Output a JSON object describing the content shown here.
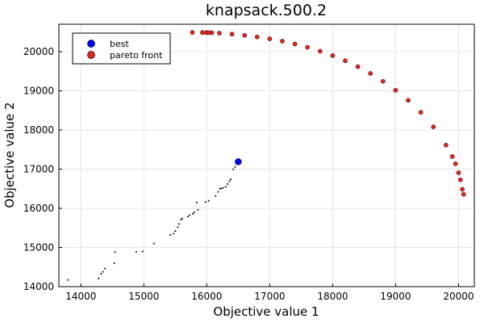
{
  "chart_data": {
    "type": "scatter",
    "title": "knapsack.500.2",
    "xlabel": "Objective value 1",
    "ylabel": "Objective value 2",
    "xlim": [
      13650,
      20250
    ],
    "ylim": [
      14000,
      20700
    ],
    "xticks": [
      14000,
      15000,
      16000,
      17000,
      18000,
      19000,
      20000
    ],
    "yticks": [
      14000,
      15000,
      16000,
      17000,
      18000,
      19000,
      20000
    ],
    "grid": true,
    "legend_position": "top-left",
    "series": [
      {
        "name": "best",
        "color": "#0000ff",
        "marker": "circle",
        "points": [
          [
            16500,
            17190
          ]
        ]
      },
      {
        "name": "pareto front",
        "color": "#e6261f",
        "marker": "circle",
        "points": [
          [
            15770,
            20490
          ],
          [
            15930,
            20488
          ],
          [
            15990,
            20486
          ],
          [
            16030,
            20485
          ],
          [
            16080,
            20482
          ],
          [
            16200,
            20472
          ],
          [
            16400,
            20448
          ],
          [
            16600,
            20414
          ],
          [
            16800,
            20375
          ],
          [
            17000,
            20327
          ],
          [
            17200,
            20268
          ],
          [
            17400,
            20196
          ],
          [
            17600,
            20111
          ],
          [
            17800,
            20011
          ],
          [
            18000,
            19899
          ],
          [
            18200,
            19767
          ],
          [
            18400,
            19616
          ],
          [
            18600,
            19443
          ],
          [
            18800,
            19243
          ],
          [
            19000,
            19016
          ],
          [
            19200,
            18756
          ],
          [
            19400,
            18451
          ],
          [
            19600,
            18081
          ],
          [
            19800,
            17614
          ],
          [
            19900,
            17322
          ],
          [
            19950,
            17137
          ],
          [
            20000,
            16908
          ],
          [
            20030,
            16727
          ],
          [
            20060,
            16486
          ],
          [
            20080,
            16358
          ]
        ]
      },
      {
        "name": "",
        "color": "#000000",
        "marker": "dot",
        "points": [
          [
            13800,
            14170
          ],
          [
            14280,
            14210
          ],
          [
            14320,
            14330
          ],
          [
            14350,
            14380
          ],
          [
            14380,
            14460
          ],
          [
            14530,
            14600
          ],
          [
            14540,
            14880
          ],
          [
            14880,
            14890
          ],
          [
            14980,
            14900
          ],
          [
            15160,
            15100
          ],
          [
            15420,
            15320
          ],
          [
            15470,
            15350
          ],
          [
            15500,
            15420
          ],
          [
            15540,
            15520
          ],
          [
            15560,
            15600
          ],
          [
            15590,
            15710
          ],
          [
            15610,
            15740
          ],
          [
            15700,
            15790
          ],
          [
            15730,
            15830
          ],
          [
            15780,
            15860
          ],
          [
            15800,
            15900
          ],
          [
            15840,
            16150
          ],
          [
            15860,
            15960
          ],
          [
            15980,
            16160
          ],
          [
            16030,
            16190
          ],
          [
            16140,
            16320
          ],
          [
            16180,
            16420
          ],
          [
            16210,
            16500
          ],
          [
            16230,
            16510
          ],
          [
            16260,
            16520
          ],
          [
            16300,
            16550
          ],
          [
            16330,
            16620
          ],
          [
            16360,
            16690
          ],
          [
            16380,
            16740
          ],
          [
            16420,
            17000
          ],
          [
            16450,
            17060
          ],
          [
            16480,
            17130
          ]
        ]
      }
    ]
  }
}
